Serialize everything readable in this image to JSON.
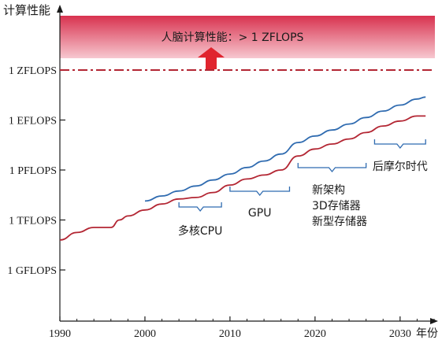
{
  "chart_data": {
    "type": "line",
    "ylabel": "计算性能",
    "xlabel": "年份",
    "x_ticks": [
      1990,
      2000,
      2010,
      2020,
      2030
    ],
    "y_ticks": [
      "1 GFLOPS",
      "1 TFLOPS",
      "1 PFLOPS",
      "1 EFLOPS",
      "1 ZFLOPS"
    ],
    "xlim": [
      1990,
      2034
    ],
    "y_scale": "log, labelled by tick names (1 GFLOPS = 0 … 1 ZFLOPS = 4 decades of 10^3)",
    "brain_band": {
      "label": "人脑计算性能：> 1 ZFLOPS",
      "color": "#e0455e"
    },
    "zflops_line": {
      "color": "#b32633",
      "level": 4
    },
    "series": [
      {
        "color": "#b32633",
        "x": [
          1990,
          1992,
          1994,
          1996,
          1997,
          1998,
          2000,
          2002,
          2004,
          2006,
          2008,
          2010,
          2012,
          2014,
          2016,
          2018,
          2020,
          2022,
          2024,
          2026,
          2028,
          2030,
          2032,
          2033
        ],
        "y": [
          0.6,
          0.75,
          0.85,
          0.85,
          1.0,
          1.08,
          1.2,
          1.32,
          1.42,
          1.45,
          1.55,
          1.7,
          1.82,
          1.9,
          2.0,
          2.28,
          2.42,
          2.52,
          2.62,
          2.75,
          2.88,
          2.98,
          3.08,
          3.08
        ]
      },
      {
        "color": "#2f6bb0",
        "x": [
          2000,
          2002,
          2004,
          2006,
          2008,
          2010,
          2012,
          2014,
          2016,
          2018,
          2020,
          2022,
          2024,
          2026,
          2028,
          2030,
          2032,
          2033
        ],
        "y": [
          1.38,
          1.48,
          1.58,
          1.68,
          1.8,
          1.92,
          2.05,
          2.18,
          2.32,
          2.55,
          2.68,
          2.8,
          2.92,
          3.05,
          3.18,
          3.3,
          3.42,
          3.46
        ]
      }
    ],
    "annotations": [
      {
        "label": "多核CPU",
        "x_range": [
          2004,
          2009
        ],
        "color": "#2f6bb0"
      },
      {
        "label": "GPU",
        "x_range": [
          2010,
          2017
        ],
        "color": "#2f6bb0"
      },
      {
        "label": "新架构",
        "label2": "3D存储器",
        "label3": "新型存储器",
        "x_range": [
          2018,
          2026
        ],
        "color": "#2f6bb0"
      },
      {
        "label": "后摩尔时代",
        "x_range": [
          2027,
          2033
        ],
        "color": "#2f6bb0"
      }
    ]
  }
}
